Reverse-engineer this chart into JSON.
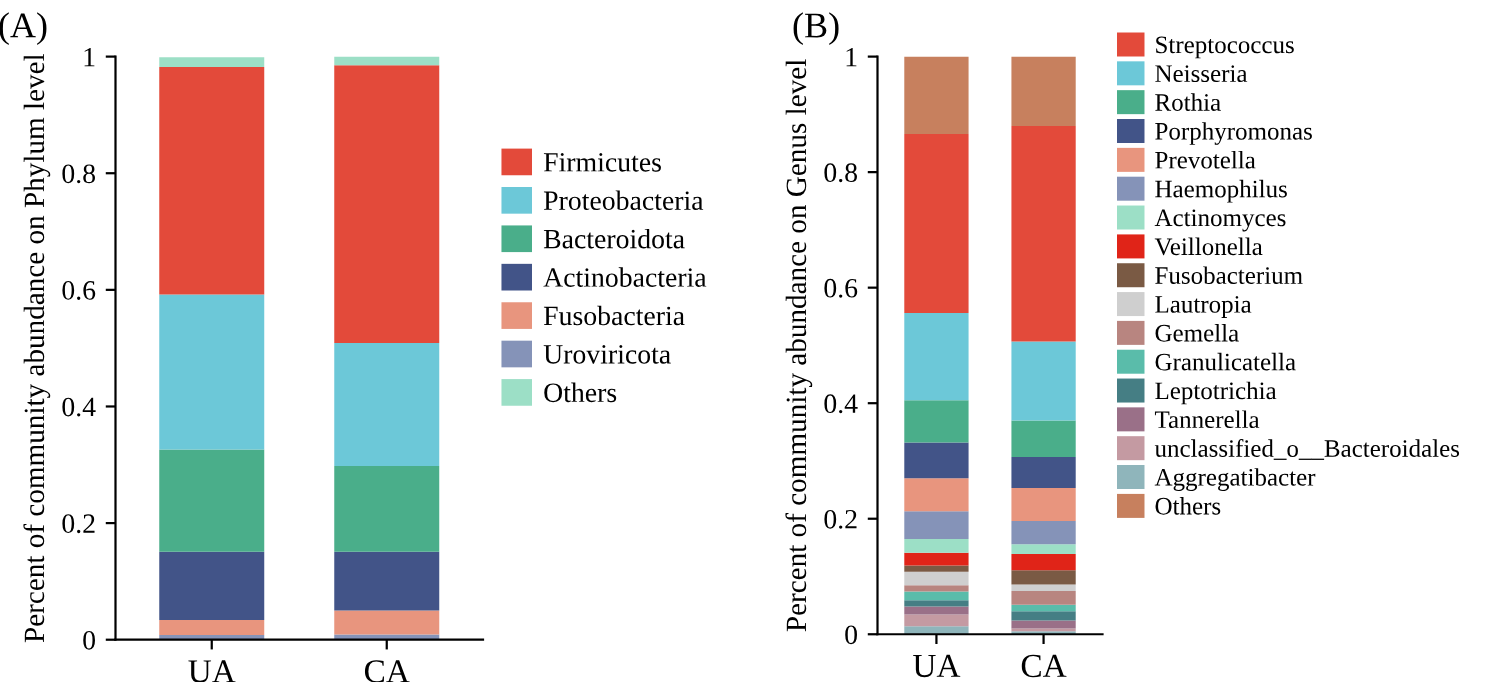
{
  "chart_data": [
    {
      "type": "bar",
      "stacked": true,
      "title": "(A)",
      "ylabel": "Percent of community abundance on Phylum level",
      "categories": [
        "UA",
        "CA"
      ],
      "ylim": [
        0,
        1
      ],
      "yticks": [
        0,
        0.2,
        0.4,
        0.6,
        0.8,
        1
      ],
      "legend": "right",
      "grid": false,
      "series": [
        {
          "name": "Uroviricota",
          "color": "#8593b8",
          "values": [
            0.008,
            0.009
          ]
        },
        {
          "name": "Fusobacteria",
          "color": "#e8957e",
          "values": [
            0.026,
            0.041
          ]
        },
        {
          "name": "Actinobacteria",
          "color": "#425488",
          "values": [
            0.117,
            0.101
          ]
        },
        {
          "name": "Bacteroidota",
          "color": "#4aae8a",
          "values": [
            0.175,
            0.147
          ]
        },
        {
          "name": "Proteobacteria",
          "color": "#6cc8d8",
          "values": [
            0.266,
            0.211
          ]
        },
        {
          "name": "Firmicutes",
          "color": "#e34a3a",
          "values": [
            0.39,
            0.476
          ]
        },
        {
          "name": "Others",
          "color": "#9cdfc6",
          "values": [
            0.017,
            0.015
          ]
        }
      ]
    },
    {
      "type": "bar",
      "stacked": true,
      "title": "(B)",
      "ylabel": "Percent of community abundance on Genus level",
      "categories": [
        "UA",
        "CA"
      ],
      "ylim": [
        0,
        1
      ],
      "yticks": [
        0,
        0.2,
        0.4,
        0.6,
        0.8,
        1
      ],
      "legend": "right",
      "grid": false,
      "series": [
        {
          "name": "Aggregatibacter",
          "color": "#8fb5bb",
          "values": [
            0.014,
            0.005
          ]
        },
        {
          "name": "unclassified_o__Bacteroidales",
          "color": "#c49aa2",
          "values": [
            0.02,
            0.005
          ]
        },
        {
          "name": "Tannerella",
          "color": "#9a7088",
          "values": [
            0.014,
            0.014
          ]
        },
        {
          "name": "Leptotrichia",
          "color": "#457e84",
          "values": [
            0.011,
            0.016
          ]
        },
        {
          "name": "Granulicatella",
          "color": "#5abcaa",
          "values": [
            0.015,
            0.011
          ]
        },
        {
          "name": "Gemella",
          "color": "#b88580",
          "values": [
            0.011,
            0.024
          ]
        },
        {
          "name": "Lautropia",
          "color": "#cfcfcf",
          "values": [
            0.023,
            0.011
          ]
        },
        {
          "name": "Fusobacterium",
          "color": "#7a5a44",
          "values": [
            0.011,
            0.025
          ]
        },
        {
          "name": "Veillonella",
          "color": "#e02418",
          "values": [
            0.022,
            0.028
          ]
        },
        {
          "name": "Actinomyces",
          "color": "#9cdfc6",
          "values": [
            0.024,
            0.017
          ]
        },
        {
          "name": "Haemophilus",
          "color": "#8593b8",
          "values": [
            0.048,
            0.04
          ]
        },
        {
          "name": "Prevotella",
          "color": "#e8957e",
          "values": [
            0.057,
            0.057
          ]
        },
        {
          "name": "Porphyromonas",
          "color": "#425488",
          "values": [
            0.062,
            0.054
          ]
        },
        {
          "name": "Rothia",
          "color": "#4aae8a",
          "values": [
            0.073,
            0.063
          ]
        },
        {
          "name": "Neisseria",
          "color": "#6cc8d8",
          "values": [
            0.151,
            0.137
          ]
        },
        {
          "name": "Streptococcus",
          "color": "#e34a3a",
          "values": [
            0.31,
            0.373
          ]
        },
        {
          "name": "Others",
          "color": "#c7805e",
          "values": [
            0.134,
            0.12
          ]
        }
      ]
    }
  ]
}
